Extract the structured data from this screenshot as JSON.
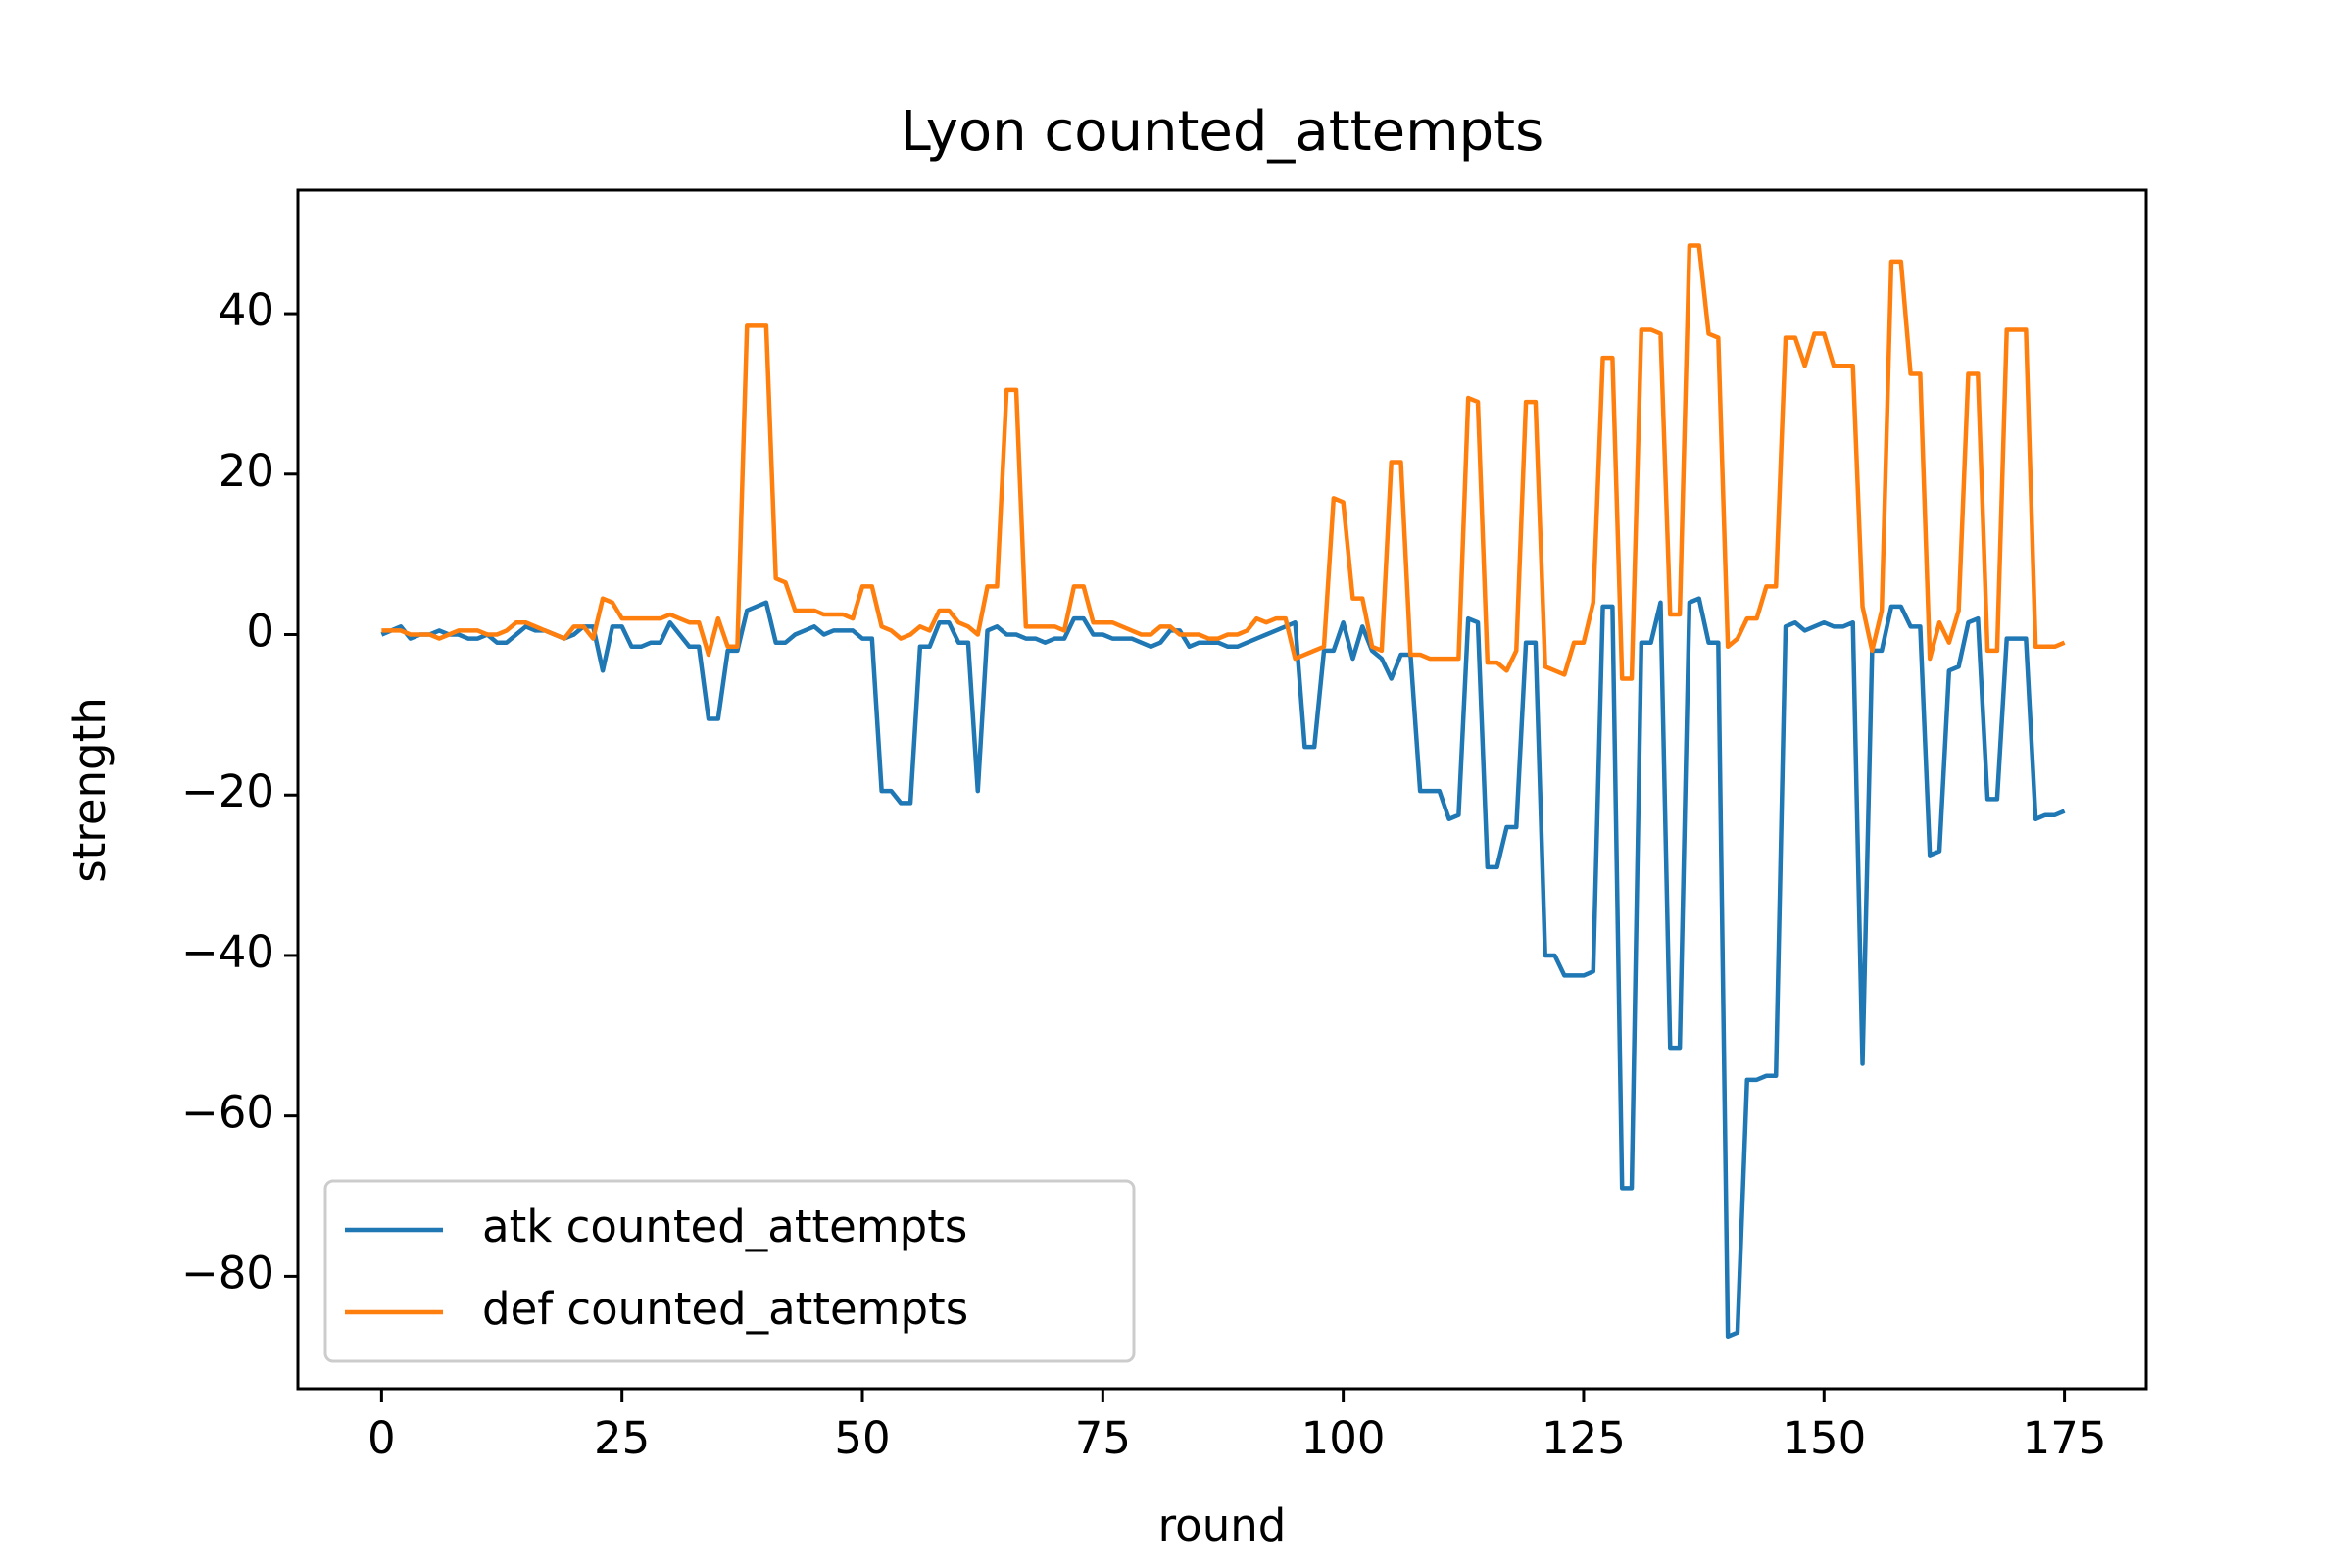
{
  "chart_data": {
    "type": "line",
    "title": "Lyon counted_attempts",
    "xlabel": "round",
    "ylabel": "strength",
    "x": [
      0,
      1,
      2,
      3,
      4,
      5,
      6,
      7,
      8,
      9,
      10,
      11,
      12,
      13,
      14,
      15,
      16,
      17,
      18,
      19,
      20,
      21,
      22,
      23,
      24,
      25,
      26,
      27,
      28,
      29,
      30,
      31,
      32,
      33,
      34,
      35,
      36,
      37,
      38,
      39,
      40,
      41,
      42,
      43,
      44,
      45,
      46,
      47,
      48,
      49,
      50,
      51,
      52,
      53,
      54,
      55,
      56,
      57,
      58,
      59,
      60,
      61,
      62,
      63,
      64,
      65,
      66,
      67,
      68,
      69,
      70,
      71,
      72,
      73,
      74,
      75,
      76,
      77,
      78,
      79,
      80,
      81,
      82,
      83,
      84,
      85,
      86,
      87,
      88,
      89,
      90,
      91,
      92,
      93,
      94,
      95,
      96,
      97,
      98,
      99,
      100,
      101,
      102,
      103,
      104,
      105,
      106,
      107,
      108,
      109,
      110,
      111,
      112,
      113,
      114,
      115,
      116,
      117,
      118,
      119,
      120,
      121,
      122,
      123,
      124,
      125,
      126,
      127,
      128,
      129,
      130,
      131,
      132,
      133,
      134,
      135,
      136,
      137,
      138,
      139,
      140,
      141,
      142,
      143,
      144,
      145,
      146,
      147,
      148,
      149,
      150,
      151,
      152,
      153,
      154,
      155,
      156,
      157,
      158,
      159,
      160,
      161,
      162,
      163,
      164,
      165,
      166,
      167,
      168,
      169,
      170,
      171,
      172,
      173,
      174,
      175
    ],
    "series": [
      {
        "name": "atk counted_attempts",
        "color": "#1f77b4",
        "values": [
          0,
          0.5,
          1,
          -0.5,
          0,
          0,
          0.5,
          0,
          0,
          -0.5,
          -0.5,
          0,
          -1,
          -1,
          0,
          1,
          0.5,
          0.5,
          0,
          -0.5,
          0,
          1,
          1,
          -4.5,
          1,
          1,
          -1.5,
          -1.5,
          -1,
          -1,
          1.5,
          0,
          -1.5,
          -1.5,
          -10.5,
          -10.5,
          -2,
          -2,
          3,
          3.5,
          4,
          -1,
          -1,
          0,
          0.5,
          1,
          0,
          0.5,
          0.5,
          0.5,
          -0.5,
          -0.5,
          -19.5,
          -19.5,
          -21,
          -21,
          -1.5,
          -1.5,
          1.5,
          1.5,
          -1,
          -1,
          -19.5,
          0.5,
          1,
          0,
          0,
          -0.5,
          -0.5,
          -1,
          -0.5,
          -0.5,
          2,
          2,
          0,
          0,
          -0.5,
          -0.5,
          -0.5,
          -1,
          -1.5,
          -1,
          0.5,
          0.5,
          -1.5,
          -1,
          -1,
          -1,
          -1.5,
          -1.5,
          -1,
          -0.5,
          0,
          0.5,
          1,
          1.5,
          -14,
          -14,
          -2,
          -2,
          1.5,
          -3,
          1,
          -2,
          -3,
          -5.5,
          -2.5,
          -2.5,
          -19.5,
          -19.5,
          -19.5,
          -23,
          -22.5,
          2,
          1.5,
          -29,
          -29,
          -24,
          -24,
          -1,
          -1,
          -40,
          -40,
          -42.5,
          -42.5,
          -42.5,
          -42,
          3.5,
          3.5,
          -69,
          -69,
          -1,
          -1,
          4,
          -51.5,
          -51.5,
          4,
          4.5,
          -1,
          -1,
          -87.5,
          -87,
          -55.5,
          -55.5,
          -55,
          -55,
          1,
          1.5,
          0.5,
          1,
          1.5,
          1,
          1,
          1.5,
          -53.5,
          -2,
          -2,
          3.5,
          3.5,
          1,
          1,
          -27.5,
          -27,
          -4.5,
          -4,
          1.5,
          2,
          -20.5,
          -20.5,
          -0.5,
          -0.5,
          -0.5,
          -23,
          -22.5,
          -22.5,
          -22
        ]
      },
      {
        "name": "def counted_attempts",
        "color": "#ff7f0e",
        "values": [
          0.5,
          0.5,
          0.5,
          0,
          0,
          0,
          -0.5,
          0,
          0.5,
          0.5,
          0.5,
          0,
          0,
          0.5,
          1.5,
          1.5,
          1,
          0.5,
          0,
          -0.5,
          1,
          1,
          -0.5,
          4.5,
          4,
          2,
          2,
          2,
          2,
          2,
          2.5,
          2,
          1.5,
          1.5,
          -2.5,
          2,
          -1.5,
          -1.5,
          38.5,
          38.5,
          38.5,
          7,
          6.5,
          3,
          3,
          3,
          2.5,
          2.5,
          2.5,
          2,
          6,
          6,
          1,
          0.5,
          -0.5,
          0,
          1,
          0.5,
          3,
          3,
          1.5,
          1,
          0,
          6,
          6,
          30.5,
          30.5,
          1,
          1,
          1,
          1,
          0.5,
          6,
          6,
          1.5,
          1.5,
          1.5,
          1,
          0.5,
          0,
          0,
          1,
          1,
          0,
          0,
          0,
          -0.5,
          -0.5,
          0,
          0,
          0.5,
          2,
          1.5,
          2,
          2,
          -3,
          -2.5,
          -2,
          -1.5,
          17,
          16.5,
          4.5,
          4.5,
          -1.5,
          -2,
          21.5,
          21.5,
          -2.5,
          -2.5,
          -3,
          -3,
          -3,
          -3,
          29.5,
          29,
          -3.5,
          -3.5,
          -4.5,
          -2,
          29,
          29,
          -4,
          -4.5,
          -5,
          -1,
          -1,
          4,
          34.5,
          34.5,
          -5.5,
          -5.5,
          38,
          38,
          37.5,
          2.5,
          2.5,
          48.5,
          48.5,
          37.5,
          37,
          -1.5,
          -0.5,
          2,
          2,
          6,
          6,
          37,
          37,
          33.5,
          37.5,
          37.5,
          33.5,
          33.5,
          33.5,
          3.5,
          -2,
          3,
          46.5,
          46.5,
          32.5,
          32.5,
          -3,
          1.5,
          -1,
          3,
          32.5,
          32.5,
          -2,
          -2,
          38,
          38,
          38,
          -1.5,
          -1.5,
          -1.5,
          -1
        ]
      }
    ],
    "xlim": [
      -8.7,
      183.5
    ],
    "ylim": [
      -94,
      55.4
    ],
    "xticks": [
      0,
      25,
      50,
      75,
      100,
      125,
      150,
      175
    ],
    "yticks": [
      {
        "value": -80,
        "label": "−80"
      },
      {
        "value": -60,
        "label": "−60"
      },
      {
        "value": -40,
        "label": "−40"
      },
      {
        "value": -20,
        "label": "−20"
      },
      0,
      20,
      40
    ],
    "legend": "lower left"
  }
}
